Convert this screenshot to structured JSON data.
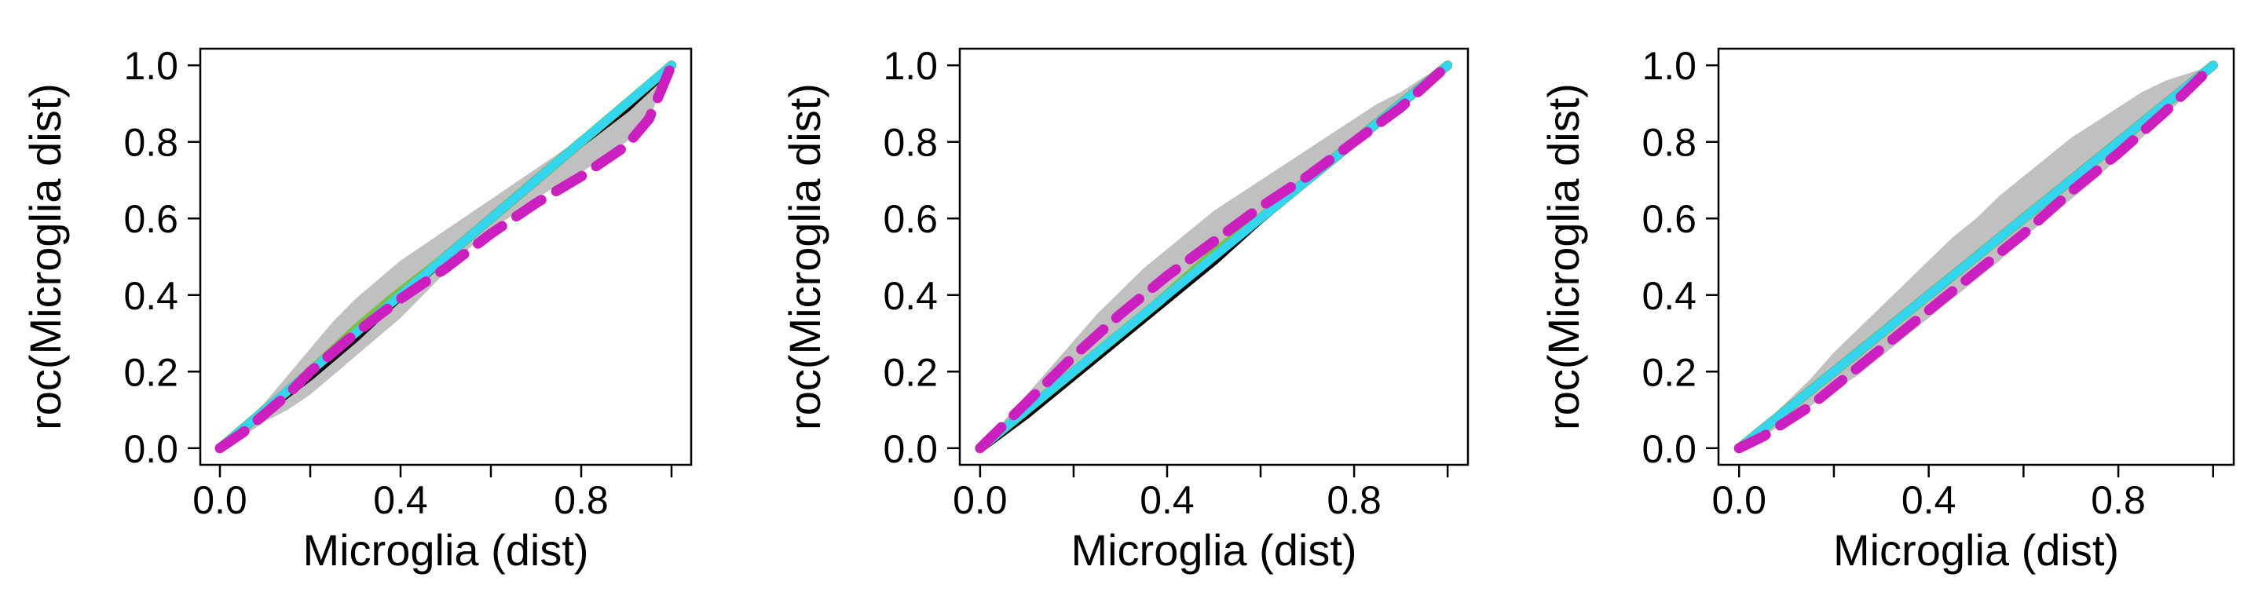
{
  "chart_data": [
    {
      "type": "line",
      "title": "",
      "xlabel": "Microglia (dist)",
      "ylabel": "roc(Microglia dist)",
      "xlim": [
        0,
        1
      ],
      "ylim": [
        0,
        1
      ],
      "xticks": [
        0.0,
        0.2,
        0.4,
        0.6,
        0.8,
        1.0
      ],
      "xtick_labels": [
        "0.0",
        "",
        "0.4",
        "",
        "0.8",
        ""
      ],
      "yticks": [
        0.0,
        0.2,
        0.4,
        0.6,
        0.8,
        1.0
      ],
      "ytick_labels": [
        "0.0",
        "0.2",
        "0.4",
        "0.6",
        "0.8",
        "1.0"
      ],
      "grid": false,
      "band": {
        "color": "#c0c0c0",
        "x": [
          0,
          0.05,
          0.1,
          0.15,
          0.2,
          0.25,
          0.3,
          0.35,
          0.4,
          0.45,
          0.5,
          0.55,
          0.6,
          0.65,
          0.7,
          0.75,
          0.8,
          0.85,
          0.9,
          0.95,
          1.0
        ],
        "lower": [
          0,
          0.03,
          0.07,
          0.1,
          0.14,
          0.19,
          0.24,
          0.29,
          0.34,
          0.4,
          0.46,
          0.52,
          0.57,
          0.61,
          0.65,
          0.69,
          0.72,
          0.76,
          0.8,
          0.86,
          1.0
        ],
        "upper": [
          0,
          0.06,
          0.12,
          0.19,
          0.26,
          0.33,
          0.39,
          0.44,
          0.49,
          0.53,
          0.57,
          0.61,
          0.65,
          0.69,
          0.73,
          0.77,
          0.81,
          0.86,
          0.91,
          0.96,
          1.0
        ]
      },
      "series": [
        {
          "color": "#000000",
          "style": "solid",
          "width": 12,
          "x": [
            0,
            0.1,
            0.2,
            0.25,
            0.3,
            0.4,
            0.5,
            0.6,
            0.7,
            0.75,
            0.8,
            0.9,
            1.0
          ],
          "y": [
            0,
            0.1,
            0.19,
            0.24,
            0.29,
            0.4,
            0.5,
            0.6,
            0.7,
            0.75,
            0.8,
            0.89,
            1.0
          ]
        },
        {
          "color": "#7ac142",
          "style": "solid",
          "width": 12,
          "x": [
            0,
            0.1,
            0.2,
            0.3,
            0.38,
            0.5,
            0.6,
            0.7,
            0.8,
            0.88,
            1.0
          ],
          "y": [
            0,
            0.1,
            0.2,
            0.31,
            0.39,
            0.5,
            0.6,
            0.7,
            0.8,
            0.88,
            1.0
          ]
        },
        {
          "color": "#33d6ee",
          "style": "solid",
          "width": 11,
          "x": [
            0,
            0.1,
            0.2,
            0.3,
            0.4,
            0.5,
            0.6,
            0.7,
            0.8,
            0.9,
            1.0
          ],
          "y": [
            0,
            0.1,
            0.2,
            0.3,
            0.4,
            0.5,
            0.6,
            0.7,
            0.8,
            0.9,
            1.0
          ]
        },
        {
          "color": "#cc1fbf",
          "style": "dashed",
          "width": 13,
          "x": [
            0,
            0.05,
            0.1,
            0.15,
            0.2,
            0.3,
            0.4,
            0.5,
            0.6,
            0.7,
            0.8,
            0.9,
            0.95,
            1.0
          ],
          "y": [
            0,
            0.04,
            0.09,
            0.14,
            0.2,
            0.3,
            0.39,
            0.47,
            0.56,
            0.64,
            0.71,
            0.79,
            0.86,
            1.0
          ]
        }
      ]
    },
    {
      "type": "line",
      "title": "",
      "xlabel": "Microglia (dist)",
      "ylabel": "roc(Microglia dist)",
      "xlim": [
        0,
        1
      ],
      "ylim": [
        0,
        1
      ],
      "xticks": [
        0.0,
        0.2,
        0.4,
        0.6,
        0.8,
        1.0
      ],
      "xtick_labels": [
        "0.0",
        "",
        "0.4",
        "",
        "0.8",
        ""
      ],
      "yticks": [
        0.0,
        0.2,
        0.4,
        0.6,
        0.8,
        1.0
      ],
      "ytick_labels": [
        "0.0",
        "0.2",
        "0.4",
        "0.6",
        "0.8",
        "1.0"
      ],
      "grid": false,
      "band": {
        "color": "#c0c0c0",
        "x": [
          0,
          0.05,
          0.1,
          0.15,
          0.2,
          0.25,
          0.3,
          0.35,
          0.4,
          0.45,
          0.5,
          0.55,
          0.6,
          0.65,
          0.7,
          0.75,
          0.8,
          0.85,
          0.9,
          0.95,
          1.0
        ],
        "lower": [
          0,
          0.04,
          0.09,
          0.14,
          0.19,
          0.24,
          0.29,
          0.34,
          0.39,
          0.44,
          0.49,
          0.54,
          0.59,
          0.64,
          0.69,
          0.74,
          0.79,
          0.84,
          0.89,
          0.94,
          1.0
        ],
        "upper": [
          0,
          0.07,
          0.14,
          0.21,
          0.28,
          0.35,
          0.41,
          0.47,
          0.52,
          0.57,
          0.62,
          0.66,
          0.7,
          0.74,
          0.78,
          0.82,
          0.86,
          0.9,
          0.93,
          0.97,
          1.0
        ]
      },
      "series": [
        {
          "color": "#000000",
          "style": "solid",
          "width": 12,
          "x": [
            0,
            0.1,
            0.2,
            0.25,
            0.3,
            0.4,
            0.5,
            0.6,
            0.7,
            0.8,
            0.9,
            1.0
          ],
          "y": [
            0,
            0.09,
            0.19,
            0.24,
            0.29,
            0.39,
            0.49,
            0.6,
            0.7,
            0.8,
            0.9,
            1.0
          ]
        },
        {
          "color": "#7ac142",
          "style": "solid",
          "width": 12,
          "x": [
            0,
            0.1,
            0.2,
            0.3,
            0.38,
            0.5,
            0.62,
            0.7,
            0.8,
            0.9,
            1.0
          ],
          "y": [
            0,
            0.1,
            0.2,
            0.3,
            0.38,
            0.51,
            0.62,
            0.7,
            0.8,
            0.9,
            1.0
          ]
        },
        {
          "color": "#33d6ee",
          "style": "solid",
          "width": 11,
          "x": [
            0,
            0.1,
            0.2,
            0.3,
            0.4,
            0.5,
            0.6,
            0.7,
            0.8,
            0.9,
            1.0
          ],
          "y": [
            0,
            0.1,
            0.2,
            0.3,
            0.4,
            0.5,
            0.6,
            0.7,
            0.8,
            0.9,
            1.0
          ]
        },
        {
          "color": "#cc1fbf",
          "style": "dashed",
          "width": 13,
          "x": [
            0,
            0.05,
            0.1,
            0.15,
            0.2,
            0.3,
            0.4,
            0.5,
            0.6,
            0.7,
            0.8,
            0.9,
            1.0
          ],
          "y": [
            0,
            0.06,
            0.12,
            0.18,
            0.24,
            0.35,
            0.45,
            0.54,
            0.63,
            0.71,
            0.8,
            0.89,
            1.0
          ]
        }
      ]
    },
    {
      "type": "line",
      "title": "",
      "xlabel": "Microglia (dist)",
      "ylabel": "roc(Microglia dist)",
      "xlim": [
        0,
        1
      ],
      "ylim": [
        0,
        1
      ],
      "xticks": [
        0.0,
        0.2,
        0.4,
        0.6,
        0.8,
        1.0
      ],
      "xtick_labels": [
        "0.0",
        "",
        "0.4",
        "",
        "0.8",
        ""
      ],
      "yticks": [
        0.0,
        0.2,
        0.4,
        0.6,
        0.8,
        1.0
      ],
      "ytick_labels": [
        "0.0",
        "0.2",
        "0.4",
        "0.6",
        "0.8",
        "1.0"
      ],
      "grid": false,
      "band": {
        "color": "#c0c0c0",
        "x": [
          0,
          0.05,
          0.1,
          0.15,
          0.2,
          0.25,
          0.3,
          0.35,
          0.4,
          0.45,
          0.5,
          0.55,
          0.6,
          0.65,
          0.7,
          0.75,
          0.8,
          0.85,
          0.9,
          0.95,
          1.0
        ],
        "lower": [
          0,
          0.03,
          0.07,
          0.11,
          0.15,
          0.19,
          0.24,
          0.29,
          0.34,
          0.39,
          0.44,
          0.49,
          0.55,
          0.6,
          0.65,
          0.7,
          0.76,
          0.81,
          0.87,
          0.93,
          1.0
        ],
        "upper": [
          0,
          0.06,
          0.12,
          0.18,
          0.25,
          0.31,
          0.37,
          0.43,
          0.49,
          0.55,
          0.6,
          0.66,
          0.71,
          0.76,
          0.81,
          0.85,
          0.89,
          0.93,
          0.96,
          0.98,
          1.0
        ]
      },
      "series": [
        {
          "color": "#000000",
          "style": "solid",
          "width": 12,
          "x": [
            0,
            0.1,
            0.2,
            0.25,
            0.3,
            0.4,
            0.5,
            0.6,
            0.7,
            0.75,
            0.8,
            0.9,
            1.0
          ],
          "y": [
            0,
            0.1,
            0.2,
            0.25,
            0.3,
            0.4,
            0.5,
            0.6,
            0.7,
            0.75,
            0.8,
            0.9,
            1.0
          ]
        },
        {
          "color": "#7ac142",
          "style": "solid",
          "width": 12,
          "x": [
            0,
            0.1,
            0.2,
            0.3,
            0.37,
            0.5,
            0.62,
            0.7,
            0.8,
            0.9,
            1.0
          ],
          "y": [
            0,
            0.1,
            0.2,
            0.3,
            0.37,
            0.5,
            0.62,
            0.7,
            0.8,
            0.9,
            1.0
          ]
        },
        {
          "color": "#33d6ee",
          "style": "solid",
          "width": 11,
          "x": [
            0,
            0.1,
            0.2,
            0.3,
            0.4,
            0.5,
            0.6,
            0.7,
            0.8,
            0.9,
            1.0
          ],
          "y": [
            0,
            0.1,
            0.2,
            0.3,
            0.4,
            0.5,
            0.6,
            0.7,
            0.8,
            0.9,
            1.0
          ]
        },
        {
          "color": "#cc1fbf",
          "style": "dashed",
          "width": 13,
          "x": [
            0,
            0.05,
            0.1,
            0.15,
            0.2,
            0.3,
            0.4,
            0.5,
            0.6,
            0.7,
            0.8,
            0.9,
            1.0
          ],
          "y": [
            0,
            0.03,
            0.07,
            0.11,
            0.16,
            0.26,
            0.36,
            0.46,
            0.56,
            0.67,
            0.77,
            0.88,
            1.0
          ]
        }
      ]
    }
  ]
}
